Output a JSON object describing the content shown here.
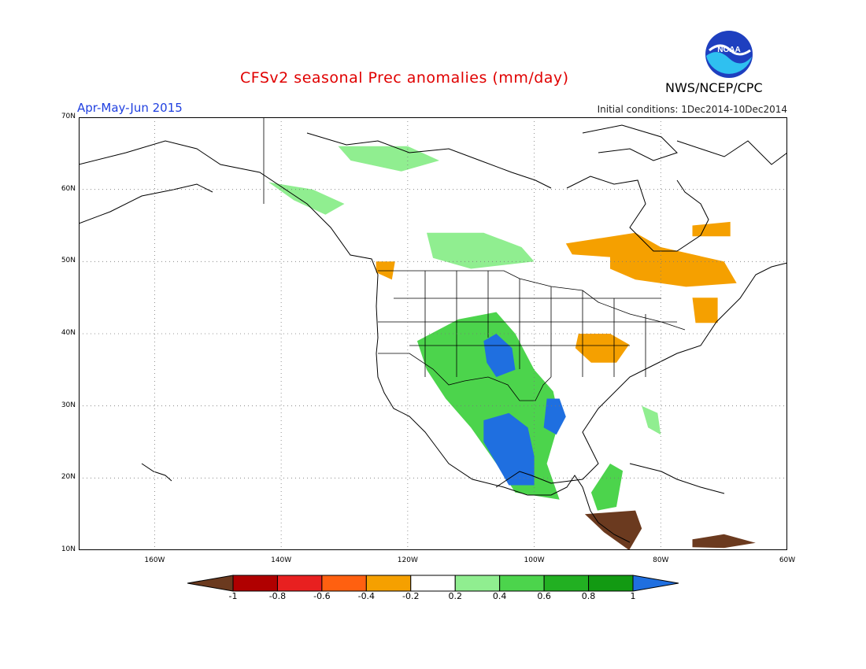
{
  "title": "CFSv2 seasonal Prec anomalies (mm/day)",
  "season": "Apr-May-Jun 2015",
  "initial_conditions": "Initial conditions: 1Dec2014-10Dec2014",
  "agency": "NWS/NCEP/CPC",
  "logo_text": "NOAA",
  "map": {
    "lon_range": [
      -172,
      -60
    ],
    "lat_range": [
      10,
      70
    ],
    "lat_labels": [
      {
        "lat": 70,
        "text": "70N"
      },
      {
        "lat": 60,
        "text": "60N"
      },
      {
        "lat": 50,
        "text": "50N"
      },
      {
        "lat": 40,
        "text": "40N"
      },
      {
        "lat": 30,
        "text": "30N"
      },
      {
        "lat": 20,
        "text": "20N"
      },
      {
        "lat": 10,
        "text": "10N"
      }
    ],
    "lon_labels": [
      {
        "lon": -160,
        "text": "160W"
      },
      {
        "lon": -140,
        "text": "140W"
      },
      {
        "lon": -120,
        "text": "120W"
      },
      {
        "lon": -100,
        "text": "100W"
      },
      {
        "lon": -80,
        "text": "80W"
      },
      {
        "lon": -60,
        "text": "60W"
      }
    ],
    "grid": "dotted"
  },
  "colorbar": {
    "labels": [
      "-1",
      "-0.8",
      "-0.6",
      "-0.4",
      "-0.2",
      "0.2",
      "0.4",
      "0.6",
      "0.8",
      "1"
    ],
    "colors": [
      "#6b3a1f",
      "#b00000",
      "#e82020",
      "#ff6010",
      "#f5a000",
      "#ffffff",
      "#90ee90",
      "#4cd44c",
      "#22b022",
      "#129a12",
      "#1f6fe0"
    ]
  },
  "anomaly_regions": [
    {
      "name": "sw-us-wet",
      "level": 0.6,
      "color": "#4cd44c",
      "points": [
        [
          -118.5,
          39
        ],
        [
          -112,
          42
        ],
        [
          -106,
          43
        ],
        [
          -103,
          40
        ],
        [
          -100,
          35
        ],
        [
          -97,
          32
        ],
        [
          -96,
          28
        ],
        [
          -98,
          22
        ],
        [
          -96,
          17
        ],
        [
          -103,
          18
        ],
        [
          -106,
          22
        ],
        [
          -110,
          27
        ],
        [
          -114,
          31
        ],
        [
          -117,
          35
        ]
      ]
    },
    {
      "name": "mexico-very-wet",
      "level": 1,
      "color": "#1f6fe0",
      "points": [
        [
          -108,
          28
        ],
        [
          -104,
          29
        ],
        [
          -101,
          27
        ],
        [
          -100,
          23
        ],
        [
          -100,
          19
        ],
        [
          -104,
          19
        ],
        [
          -106,
          22
        ],
        [
          -108,
          25
        ]
      ]
    },
    {
      "name": "four-corners-very-wet",
      "level": 1,
      "color": "#1f6fe0",
      "points": [
        [
          -108,
          39
        ],
        [
          -106,
          40
        ],
        [
          -103.5,
          38
        ],
        [
          -103,
          35
        ],
        [
          -106,
          34
        ],
        [
          -107.5,
          36
        ]
      ]
    },
    {
      "name": "texas-very-wet",
      "level": 1,
      "color": "#1f6fe0",
      "points": [
        [
          -98,
          31
        ],
        [
          -96,
          31
        ],
        [
          -95,
          28.5
        ],
        [
          -96.5,
          26
        ],
        [
          -98.5,
          27
        ]
      ]
    },
    {
      "name": "yukon-wet",
      "level": 0.4,
      "color": "#90ee90",
      "points": [
        [
          -131,
          66
        ],
        [
          -120,
          66
        ],
        [
          -115,
          64
        ],
        [
          -121,
          62.5
        ],
        [
          -129,
          64
        ]
      ]
    },
    {
      "name": "prairies-wet",
      "level": 0.4,
      "color": "#90ee90",
      "points": [
        [
          -117,
          54
        ],
        [
          -108,
          54
        ],
        [
          -102,
          52
        ],
        [
          -100,
          50
        ],
        [
          -110,
          49
        ],
        [
          -116,
          50.5
        ]
      ]
    },
    {
      "name": "alaska-panhandle-wet",
      "level": 0.4,
      "color": "#90ee90",
      "points": [
        [
          -142,
          61
        ],
        [
          -135,
          60
        ],
        [
          -130,
          58
        ],
        [
          -133,
          56.5
        ],
        [
          -138,
          58.5
        ]
      ]
    },
    {
      "name": "yucatan-wet",
      "level": 0.6,
      "color": "#4cd44c",
      "points": [
        [
          -91,
          18
        ],
        [
          -88,
          22
        ],
        [
          -86,
          21
        ],
        [
          -87,
          16
        ],
        [
          -90,
          15.5
        ]
      ]
    },
    {
      "name": "florida-wet",
      "level": 0.4,
      "color": "#90ee90",
      "points": [
        [
          -83,
          30
        ],
        [
          -80.5,
          29
        ],
        [
          -80,
          26
        ],
        [
          -82,
          27
        ]
      ]
    },
    {
      "name": "quebec-dry",
      "level": -0.4,
      "color": "#f5a000",
      "points": [
        [
          -88,
          51
        ],
        [
          -80,
          52
        ],
        [
          -70,
          50
        ],
        [
          -68,
          47
        ],
        [
          -76,
          46.5
        ],
        [
          -84,
          47.5
        ],
        [
          -88,
          49
        ]
      ]
    },
    {
      "name": "hudson-bay-dry",
      "level": -0.4,
      "color": "#f5a000",
      "points": [
        [
          -95,
          52.5
        ],
        [
          -84,
          54
        ],
        [
          -80,
          52
        ],
        [
          -86,
          50.5
        ],
        [
          -94,
          51
        ]
      ]
    },
    {
      "name": "labrador-dry",
      "level": -0.4,
      "color": "#f5a000",
      "points": [
        [
          -75,
          55
        ],
        [
          -69,
          55.5
        ],
        [
          -69,
          53.5
        ],
        [
          -75,
          53.5
        ]
      ]
    },
    {
      "name": "midwest-dry",
      "level": -0.4,
      "color": "#f5a000",
      "points": [
        [
          -93,
          40
        ],
        [
          -88,
          40
        ],
        [
          -85,
          38.5
        ],
        [
          -87,
          36
        ],
        [
          -91,
          36
        ],
        [
          -93.5,
          38
        ]
      ]
    },
    {
      "name": "northeast-dry",
      "level": -0.4,
      "color": "#f5a000",
      "points": [
        [
          -75,
          45
        ],
        [
          -71,
          45
        ],
        [
          -71,
          41.5
        ],
        [
          -74.5,
          41.5
        ]
      ]
    },
    {
      "name": "pacific-nw-dry",
      "level": -0.4,
      "color": "#f5a000",
      "points": [
        [
          -125,
          50
        ],
        [
          -122,
          50
        ],
        [
          -122.5,
          47.5
        ],
        [
          -125,
          48.5
        ]
      ]
    },
    {
      "name": "central-america-dry",
      "level": -1,
      "color": "#6b3a1f",
      "points": [
        [
          -92,
          15
        ],
        [
          -84,
          15.5
        ],
        [
          -83,
          13
        ],
        [
          -85,
          10
        ],
        [
          -89,
          12.5
        ]
      ]
    },
    {
      "name": "venezuela-dry",
      "level": -1,
      "color": "#6b3a1f",
      "points": [
        [
          -75,
          11.5
        ],
        [
          -70,
          12.2
        ],
        [
          -65,
          11
        ],
        [
          -70,
          10.3
        ],
        [
          -75,
          10.4
        ]
      ]
    }
  ]
}
